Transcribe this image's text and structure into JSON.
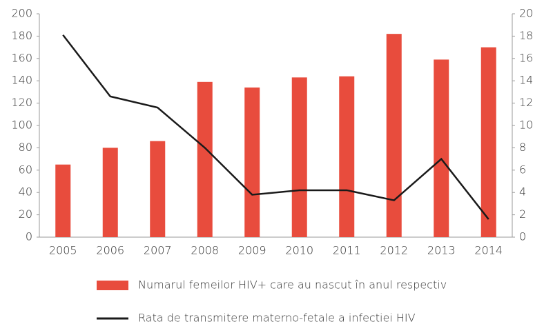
{
  "chart_data": {
    "type": "bar",
    "categories": [
      "2005",
      "2006",
      "2007",
      "2008",
      "2009",
      "2010",
      "2011",
      "2012",
      "2013",
      "2014"
    ],
    "series": [
      {
        "name": "Numarul femeilor HIV+ care au nascut în anul respectiv",
        "type": "bar",
        "color": "#e84c3d",
        "values": [
          65,
          80,
          86,
          139,
          134,
          143,
          144,
          182,
          159,
          170
        ]
      },
      {
        "name": "Rata de transmitere materno-fetale a infectiei HIV",
        "type": "line",
        "color": "#1a1a1a",
        "axis": "y2",
        "values": [
          18.1,
          12.6,
          11.6,
          8.0,
          3.8,
          4.2,
          4.2,
          3.3,
          7.0,
          1.6
        ]
      }
    ],
    "ylim": [
      0,
      200
    ],
    "yticks": [
      0,
      20,
      40,
      60,
      80,
      100,
      120,
      140,
      160,
      180,
      200
    ],
    "y2lim": [
      0,
      20
    ],
    "y2ticks": [
      0,
      2,
      4,
      6,
      8,
      10,
      12,
      14,
      16,
      18,
      20
    ]
  }
}
